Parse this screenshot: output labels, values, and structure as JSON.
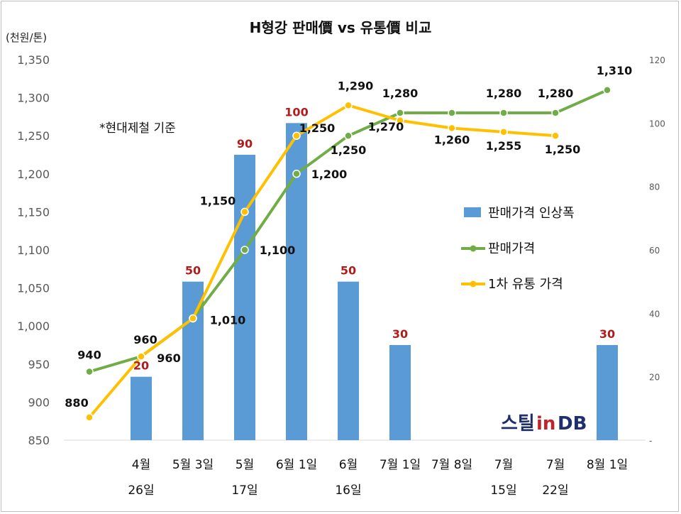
{
  "chart_data": {
    "type": "bar+line",
    "title": "H형강 판매價 vs 유통價 비교",
    "y_unit": "(천원/톤)",
    "note": "*현대제철 기준",
    "brand": {
      "part1": "스틸",
      "part2": "in",
      "part3": "DB"
    },
    "ylim": [
      850,
      1350
    ],
    "yticks": [
      "850",
      "900",
      "950",
      "1,000",
      "1,050",
      "1,100",
      "1,150",
      "1,200",
      "1,250",
      "1,300",
      "1,350"
    ],
    "ylim_right": [
      0,
      120
    ],
    "yticks_right": [
      "-",
      "20",
      "40",
      "60",
      "80",
      "100",
      "120"
    ],
    "grid": false,
    "legend_position": "right",
    "categories": [
      {
        "line1": "",
        "line2": ""
      },
      {
        "line1": "4월",
        "line2": "26일"
      },
      {
        "line1": "5월 3일",
        "line2": ""
      },
      {
        "line1": "5월",
        "line2": "17일"
      },
      {
        "line1": "6월 1일",
        "line2": ""
      },
      {
        "line1": "6월",
        "line2": "16일"
      },
      {
        "line1": "7월 1일",
        "line2": ""
      },
      {
        "line1": "7월 8일",
        "line2": ""
      },
      {
        "line1": "7월",
        "line2": "15일"
      },
      {
        "line1": "7월",
        "line2": "22일"
      },
      {
        "line1": "8월 1일",
        "line2": ""
      }
    ],
    "series": [
      {
        "name": "판매가격 인상폭",
        "kind": "bar",
        "axis": "right",
        "color": "#5b9bd5",
        "values": [
          null,
          20,
          50,
          90,
          100,
          50,
          30,
          null,
          null,
          null,
          30
        ],
        "labels": [
          "",
          "20",
          "50",
          "90",
          "100",
          "50",
          "30",
          "",
          "",
          "",
          "30"
        ]
      },
      {
        "name": "판매가격",
        "kind": "line",
        "axis": "left",
        "color": "#70ad47",
        "values": [
          940,
          960,
          1010,
          1100,
          1200,
          1250,
          1280,
          1280,
          1280,
          1280,
          1310
        ],
        "labels": [
          "940",
          "960",
          "1,010",
          "1,100",
          "1,200",
          "1,250",
          "1,280",
          "",
          "1,280",
          "1,280",
          "1,310"
        ]
      },
      {
        "name": "1차 유통 가격",
        "kind": "line",
        "axis": "left",
        "color": "#ffc000",
        "values": [
          880,
          960,
          1010,
          1150,
          1250,
          1290,
          1270,
          1260,
          1255,
          1250,
          null
        ],
        "labels": [
          "880",
          "960",
          "",
          "1,150",
          "1,250",
          "1,290",
          "1,270",
          "1,260",
          "1,255",
          "1,250",
          ""
        ]
      }
    ]
  }
}
